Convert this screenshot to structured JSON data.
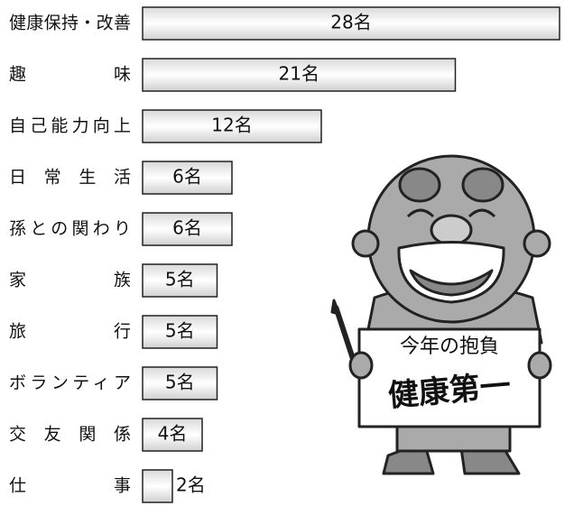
{
  "chart_data": {
    "type": "bar",
    "orientation": "horizontal",
    "categories": [
      "健康保持・改善",
      "趣　味",
      "自己能力向上",
      "日 常 生 活",
      "孫との関わり",
      "家　族",
      "旅　行",
      "ボランティア",
      "交 友 関 係",
      "仕　事"
    ],
    "values": [
      28,
      21,
      12,
      6,
      6,
      5,
      5,
      5,
      4,
      2
    ],
    "value_labels": [
      "28名",
      "21名",
      "12名",
      "6名",
      "6名",
      "5名",
      "5名",
      "5名",
      "4名",
      "2名"
    ],
    "annotations": [
      "今年の抱負",
      "健康第一"
    ]
  }
}
